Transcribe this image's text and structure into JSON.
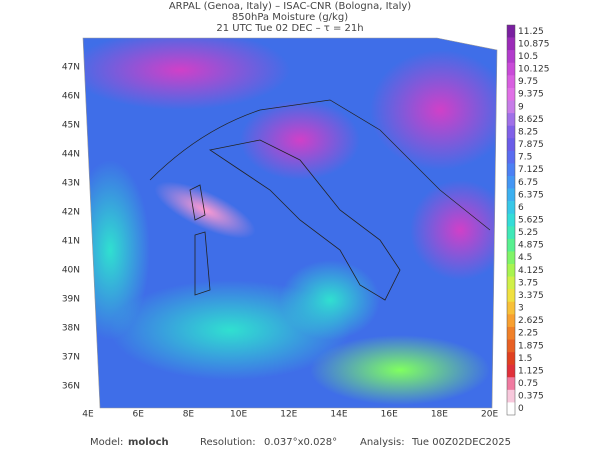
{
  "header": {
    "line1": "ARPAL (Genoa, Italy)  –  ISAC-CNR (Bologna, Italy)",
    "line2": "850hPa Moisture (g/kg)",
    "line3": "21 UTC Tue 02 DEC  –  τ = 21h"
  },
  "map": {
    "lat_labels": [
      "47N",
      "46N",
      "45N",
      "44N",
      "43N",
      "42N",
      "41N",
      "40N",
      "39N",
      "38N",
      "37N",
      "36N"
    ],
    "lon_labels": [
      "4E",
      "6E",
      "8E",
      "10E",
      "12E",
      "14E",
      "16E",
      "18E",
      "20E"
    ]
  },
  "colorbar": {
    "labels": [
      11.25,
      10.875,
      10.5,
      10.125,
      9.75,
      9.375,
      9,
      8.625,
      8.25,
      7.875,
      7.5,
      7.125,
      6.75,
      6.375,
      6,
      5.625,
      5.25,
      4.875,
      4.5,
      4.125,
      3.75,
      3.375,
      3,
      2.625,
      2.25,
      1.875,
      1.5,
      1.125,
      0.75,
      0.375,
      0
    ]
  },
  "footer": {
    "model_label": "Model:",
    "model": "moloch",
    "resolution_label": "Resolution:",
    "resolution": "0.037°x0.028°",
    "analysis_label": "Analysis:",
    "analysis": "Tue 00Z02DEC2025"
  }
}
